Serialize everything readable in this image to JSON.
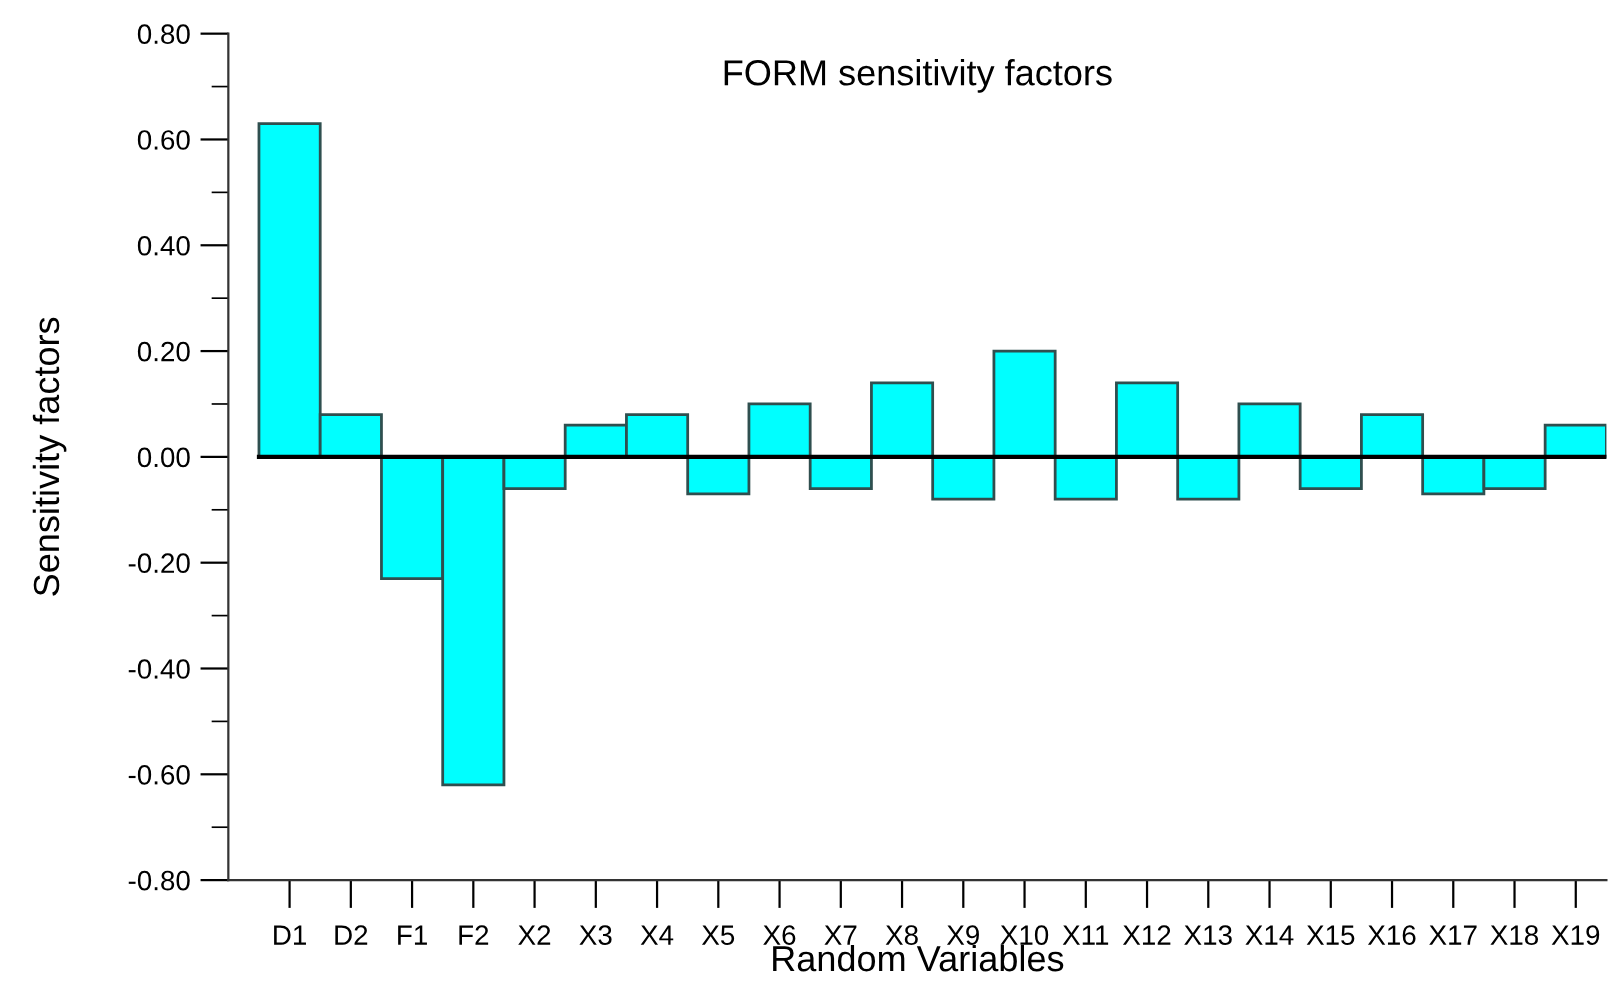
{
  "chart_data": {
    "type": "bar",
    "title": "FORM sensitivity factors",
    "xlabel": "Random Variables",
    "ylabel": "Sensitivity factors",
    "categories": [
      "D1",
      "D2",
      "F1",
      "F2",
      "X2",
      "X3",
      "X4",
      "X5",
      "X6",
      "X7",
      "X8",
      "X9",
      "X10",
      "X11",
      "X12",
      "X13",
      "X14",
      "X15",
      "X16",
      "X17",
      "X18",
      "X19"
    ],
    "values": [
      0.63,
      0.08,
      -0.23,
      -0.62,
      -0.06,
      0.06,
      0.08,
      -0.07,
      0.1,
      -0.06,
      0.14,
      -0.08,
      0.2,
      -0.08,
      0.14,
      -0.08,
      0.1,
      -0.06,
      0.08,
      -0.07,
      -0.06,
      0.06
    ],
    "color": "#00ffff",
    "ylim": [
      -0.8,
      0.8
    ],
    "yticks": [
      {
        "value": -0.8,
        "label": "-0.80"
      },
      {
        "value": -0.6,
        "label": "-0.60"
      },
      {
        "value": -0.4,
        "label": "-0.40"
      },
      {
        "value": -0.2,
        "label": "-0.20"
      },
      {
        "value": 0,
        "label": "0.00"
      },
      {
        "value": 0.2,
        "label": "0.20"
      },
      {
        "value": 0.4,
        "label": "0.40"
      },
      {
        "value": 0.6,
        "label": "0.60"
      },
      {
        "value": 0.8,
        "label": "0.80"
      }
    ],
    "ref_lines": [
      {
        "axis": "y",
        "value": 0,
        "color": "#000000"
      }
    ],
    "grid": false,
    "legend": false
  }
}
